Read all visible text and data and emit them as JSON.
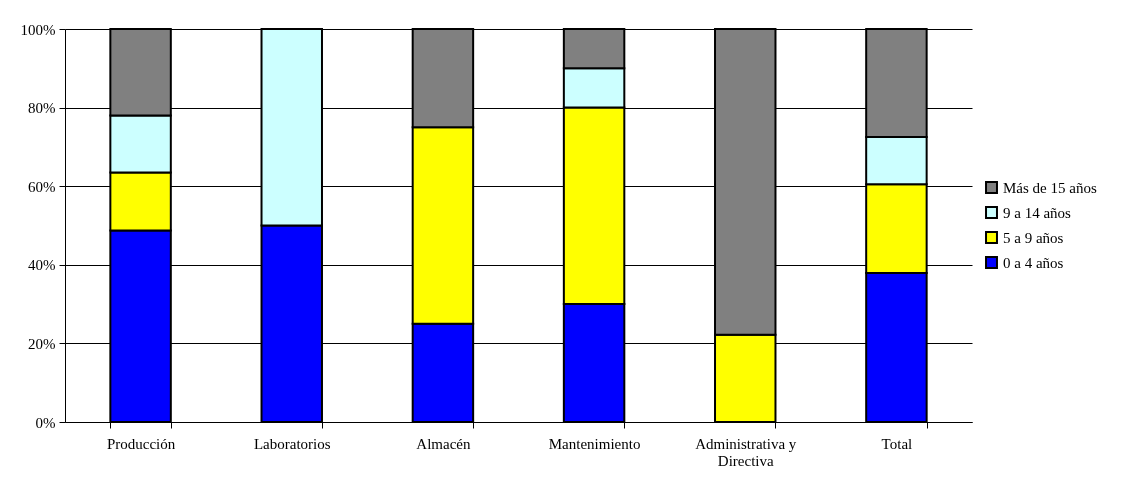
{
  "chart_data": {
    "type": "bar",
    "stacked": true,
    "categories": [
      "Producción",
      "Laboratorios",
      "Almacén",
      "Mantenimiento",
      "Administrativa y Directiva",
      "Total"
    ],
    "series": [
      {
        "name": "0 a 4 años",
        "color": "#0000ff",
        "values": [
          48.7,
          50,
          25,
          30,
          0,
          37.9
        ]
      },
      {
        "name": "5 a 9 años",
        "color": "#ffff00",
        "values": [
          14.8,
          0,
          50,
          50,
          22.2,
          22.6
        ]
      },
      {
        "name": "9 a 14 años",
        "color": "#ccffff",
        "values": [
          14.5,
          50,
          0,
          10,
          0,
          12.0
        ]
      },
      {
        "name": "Más de 15 años",
        "color": "#808080",
        "values": [
          22.0,
          0,
          25,
          10,
          77.8,
          27.5
        ]
      }
    ],
    "ylim": [
      0,
      100
    ],
    "yticks": [
      {
        "value": 0,
        "label": "0%"
      },
      {
        "value": 20,
        "label": "20%"
      },
      {
        "value": 40,
        "label": "40%"
      },
      {
        "value": 60,
        "label": "60%"
      },
      {
        "value": 80,
        "label": "80%"
      },
      {
        "value": 100,
        "label": "100%"
      }
    ],
    "grid": "y",
    "legend": "right"
  }
}
